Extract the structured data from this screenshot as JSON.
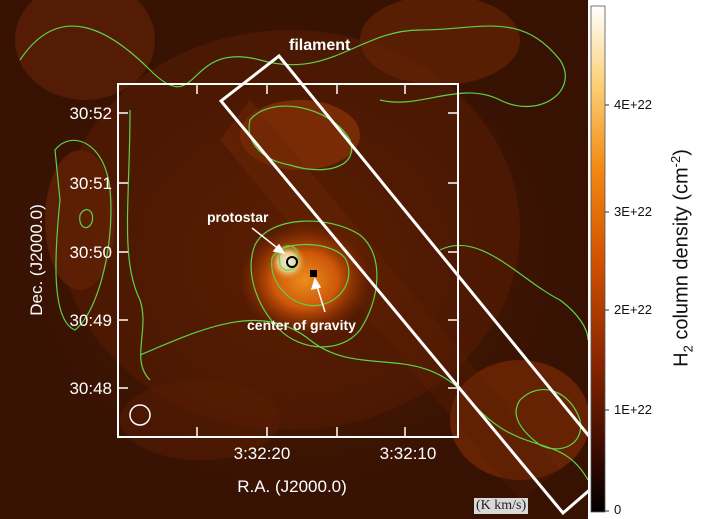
{
  "image": {
    "colormap": [
      "#000000",
      "#3a0b00",
      "#7a2200",
      "#c24a00",
      "#f08a10",
      "#fcd27a",
      "#ffffff"
    ],
    "contour_color": "#5fd24a",
    "box_color": "#ffffff"
  },
  "labels": {
    "filament": "filament",
    "protostar": "protostar",
    "center_of_gravity": "center of gravity"
  },
  "axes": {
    "y_title": "Dec. (J2000.0)",
    "x_title": "R.A. (J2000.0)",
    "y_ticks": [
      "30:52",
      "30:51",
      "30:50",
      "30:49",
      "30:48"
    ],
    "x_ticks": [
      "3:32:20",
      "3:32:10"
    ]
  },
  "colorbar": {
    "title_main": "H",
    "title_sub": "2",
    "title_rest": " column density (cm",
    "title_sup": "-2",
    "title_end": ")",
    "ticks": [
      "4E+22",
      "3E+22",
      "2E+22",
      "1E+22",
      "0"
    ],
    "unit_note": "(K km/s)"
  }
}
